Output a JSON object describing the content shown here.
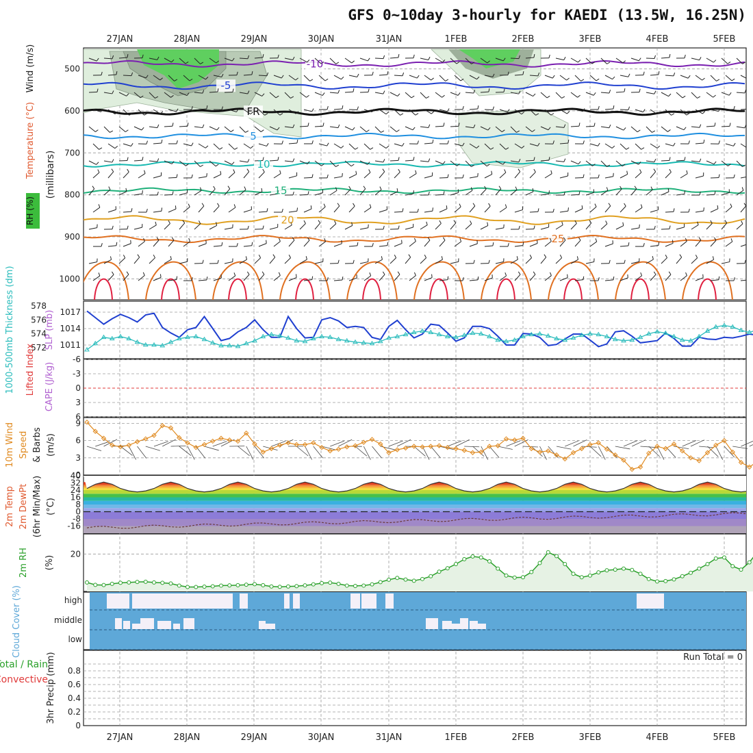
{
  "title": "GFS 0~10day 3-hourly for KAEDI (13.5W, 16.25N)",
  "colors": {
    "wind": "#222222",
    "temp_label": "#e05a30",
    "rh": "#2aa02a",
    "slp": "#1f3fd0",
    "thickness": "#2abcbc",
    "lifted": "#e03a3a",
    "cape": "#b060d0",
    "wind10m": "#e08a20",
    "cloud": "#5ea8d8",
    "precip_green": "#2aa02a"
  },
  "chart_data": [
    {
      "panel": "upper-air",
      "type": "line",
      "xlabel_dates": [
        "27JAN",
        "28JAN",
        "29JAN",
        "30JAN",
        "31JAN",
        "1FEB",
        "2FEB",
        "3FEB",
        "4FEB",
        "5FEB"
      ],
      "ylabel": "(millibars)",
      "side_labels": [
        "Wind (m/s)",
        "Temperature (°C)",
        "RH (%)"
      ],
      "yticks": [
        "500",
        "600",
        "700",
        "800",
        "900",
        "1000"
      ],
      "ylim": [
        450,
        1050
      ],
      "isotherms": [
        {
          "label": "-10",
          "value": -10
        },
        {
          "label": "-5",
          "value": -5
        },
        {
          "label": "FR",
          "value": 0
        },
        {
          "label": "5",
          "value": 5
        },
        {
          "label": "10",
          "value": 10
        },
        {
          "label": "15",
          "value": 15
        },
        {
          "label": "20",
          "value": 20
        },
        {
          "label": "25",
          "value": 25
        }
      ]
    },
    {
      "panel": "slp-thickness",
      "type": "line",
      "ylabel_left": "1000-500mb Thickness (dm)",
      "ylabel_right": "SLP (mb)",
      "left_ticks": [
        "572",
        "574",
        "576",
        "578"
      ],
      "right_ticks": [
        "1011",
        "1014",
        "1017"
      ],
      "series": [
        {
          "name": "SLP",
          "unit": "mb",
          "values": [
            1017.2,
            1016.0,
            1014.8,
            1015.8,
            1016.6,
            1016.0,
            1015.2,
            1016.5,
            1016.8,
            1014.2,
            1013.2,
            1012.4,
            1013.8,
            1014.2,
            1016.2,
            1014.0,
            1011.8,
            1012.2,
            1013.4,
            1014.2,
            1015.6,
            1013.8,
            1012.4,
            1012.4,
            1016.2,
            1014.0,
            1012.3,
            1012.4,
            1015.6,
            1016.0,
            1015.4,
            1014.2,
            1014.4,
            1014.2,
            1012.4,
            1012.0,
            1014.4,
            1015.5,
            1013.8,
            1012.3,
            1013.0,
            1014.8,
            1014.6,
            1013.2,
            1011.7,
            1012.3,
            1014.4,
            1014.4,
            1014.0,
            1012.6,
            1011.0,
            1011.0,
            1013.1,
            1013.0,
            1012.4,
            1010.9,
            1011.1,
            1012.1,
            1013.0,
            1013.0,
            1011.9,
            1010.7,
            1011.2,
            1013.4,
            1013.6,
            1012.6,
            1011.4,
            1011.6,
            1011.8,
            1013.2,
            1012.2,
            1010.8,
            1010.8,
            1012.4,
            1012.1,
            1012.0,
            1012.4,
            1012.3,
            1012.6,
            1013.0,
            1012.8,
            1012.2,
            1012.6,
            1012.8,
            1012.4
          ]
        },
        {
          "name": "Thickness",
          "unit": "dm",
          "values": [
            571.7,
            572.6,
            573.5,
            573.3,
            573.6,
            573.3,
            572.8,
            572.4,
            572.4,
            572.3,
            572.8,
            573.3,
            573.5,
            573.6,
            573.2,
            572.7,
            572.3,
            572.3,
            572.2,
            572.6,
            573.0,
            573.6,
            573.9,
            573.7,
            573.4,
            573.0,
            572.9,
            573.3,
            573.6,
            573.5,
            573.2,
            573.0,
            572.8,
            572.7,
            572.6,
            572.9,
            573.4,
            573.6,
            573.9,
            574.2,
            574.4,
            574.2,
            573.9,
            573.6,
            573.5,
            573.8,
            574.1,
            574.0,
            573.6,
            573.1,
            572.9,
            573.1,
            573.6,
            573.9,
            574.0,
            573.7,
            573.3,
            573.1,
            573.4,
            573.8,
            574.0,
            573.9,
            573.6,
            573.2,
            573.0,
            573.1,
            573.5,
            574.0,
            574.3,
            574.1,
            573.6,
            573.1,
            573.0,
            573.6,
            574.4,
            575.0,
            575.2,
            575.0,
            574.5,
            574.2,
            574.6,
            575.3,
            576.0,
            576.3,
            576.1
          ]
        }
      ]
    },
    {
      "panel": "lifted-cape",
      "type": "line",
      "ylabel_left": "Lifted Index",
      "ylabel_right": "CAPE (J/kg)",
      "yticks": [
        "-6",
        "-3",
        "0",
        "3",
        "6"
      ],
      "ylim": [
        6,
        -6
      ],
      "reference_line": 0
    },
    {
      "panel": "wind-10m",
      "type": "line",
      "ylabel": "10m Wind Speed & Barbs (m/s)",
      "yticks": [
        "3",
        "6",
        "9"
      ],
      "ylim": [
        0,
        10
      ],
      "values": [
        9.2,
        7.6,
        6.4,
        5.2,
        4.9,
        5.2,
        5.8,
        6.3,
        6.9,
        8.6,
        8.2,
        6.5,
        5.6,
        4.8,
        5.3,
        5.9,
        6.4,
        6.1,
        5.9,
        7.3,
        5.4,
        4.0,
        4.6,
        5.2,
        5.6,
        5.3,
        5.3,
        5.6,
        4.8,
        4.2,
        4.5,
        4.9,
        5.1,
        5.7,
        6.2,
        5.4,
        3.9,
        4.4,
        4.7,
        5.0,
        4.9,
        5.0,
        5.1,
        4.8,
        4.6,
        4.3,
        3.9,
        4.0,
        5.0,
        5.1,
        6.3,
        6.1,
        6.4,
        4.6,
        4.0,
        4.2,
        3.5,
        2.8,
        3.9,
        4.6,
        5.3,
        5.6,
        4.5,
        3.5,
        2.6,
        1.0,
        1.4,
        3.8,
        5.0,
        4.6,
        5.4,
        4.2,
        3.0,
        2.5,
        3.9,
        5.2,
        6.0,
        4.0,
        2.2,
        1.4,
        2.4,
        3.6,
        4.9,
        5.2,
        4.4
      ]
    },
    {
      "panel": "temp-dewpt",
      "type": "area",
      "ylabel": "2m Temp 2m DewPt (6hr Min/Max) (°C)",
      "yticks": [
        "-16",
        "-8",
        "0",
        "8",
        "16",
        "24",
        "32",
        "40"
      ],
      "ylim": [
        -24,
        40
      ],
      "temp_min": 22,
      "temp_max": 33
    },
    {
      "panel": "rh-2m",
      "type": "area",
      "ylabel": "2m RH (%)",
      "yticks": [
        "20"
      ],
      "ylim": [
        0,
        30
      ],
      "values": [
        3.6,
        2.2,
        2.1,
        2.8,
        3.4,
        3.6,
        3.9,
        4.0,
        3.6,
        3.4,
        3.0,
        1.8,
        1.0,
        1.0,
        1.2,
        1.4,
        1.8,
        1.9,
        2.0,
        2.3,
        2.6,
        2.0,
        1.3,
        1.1,
        1.3,
        1.5,
        1.9,
        2.5,
        3.2,
        3.5,
        2.8,
        1.8,
        1.6,
        1.8,
        2.5,
        3.8,
        5.2,
        6.2,
        5.3,
        4.6,
        5.6,
        7.2,
        9.8,
        11.8,
        14.2,
        17.0,
        18.6,
        18.0,
        15.8,
        11.6,
        7.6,
        6.4,
        6.6,
        9.6,
        14.8,
        21.0,
        18.8,
        14.2,
        8.6,
        6.6,
        7.6,
        9.4,
        10.6,
        11.0,
        11.6,
        10.8,
        8.6,
        5.6,
        4.2,
        4.4,
        5.4,
        7.2,
        9.2,
        11.6,
        14.2,
        17.4,
        18.0,
        13.0,
        11.0,
        15.2,
        21.6,
        25.6,
        23.6,
        15.2,
        10.6
      ]
    },
    {
      "panel": "cloud-cover",
      "type": "area",
      "ylabel": "Cloud Cover (%)",
      "ytick_labels": [
        "high",
        "middle",
        "low"
      ]
    },
    {
      "panel": "precip",
      "type": "bar",
      "ylabel": "3hr Precip (mm)",
      "side_labels": [
        "Total / Rain",
        "Convective"
      ],
      "yticks": [
        "0",
        "0.2",
        "0.4",
        "0.6",
        "0.8"
      ],
      "ylim": [
        0,
        1
      ],
      "run_total": "Run Total = 0",
      "values": []
    }
  ]
}
